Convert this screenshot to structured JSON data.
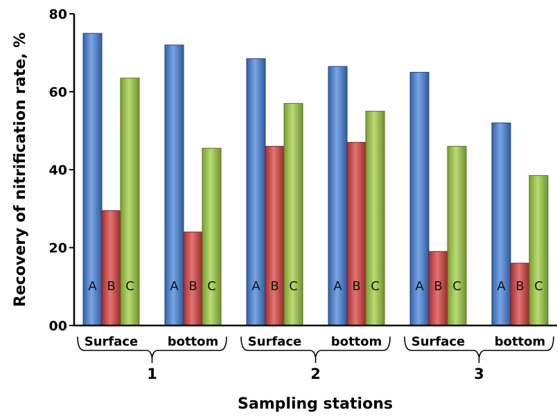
{
  "chart_data": {
    "type": "bar",
    "xlabel": "Sampling stations",
    "ylabel": "Recovery of nitrification rate, %",
    "ylim": [
      0,
      80
    ],
    "yticks": [
      "00",
      "20",
      "40",
      "60",
      "80"
    ],
    "categories": [
      "Surface",
      "bottom",
      "Surface",
      "bottom",
      "Surface",
      "bottom"
    ],
    "groups": [
      {
        "label": "1",
        "members": [
          0,
          1
        ]
      },
      {
        "label": "2",
        "members": [
          2,
          3
        ]
      },
      {
        "label": "3",
        "members": [
          4,
          5
        ]
      }
    ],
    "series": [
      {
        "name": "A",
        "color": "#3f7fd8",
        "values": [
          75,
          72,
          68.5,
          66.5,
          65,
          52
        ]
      },
      {
        "name": "B",
        "color": "#d63a3a",
        "values": [
          29.5,
          24,
          46,
          47,
          19,
          16
        ]
      },
      {
        "name": "C",
        "color": "#9ccc3c",
        "values": [
          63.5,
          45.5,
          57,
          55,
          46,
          38.5
        ]
      }
    ],
    "grid": false,
    "legend": "none"
  }
}
